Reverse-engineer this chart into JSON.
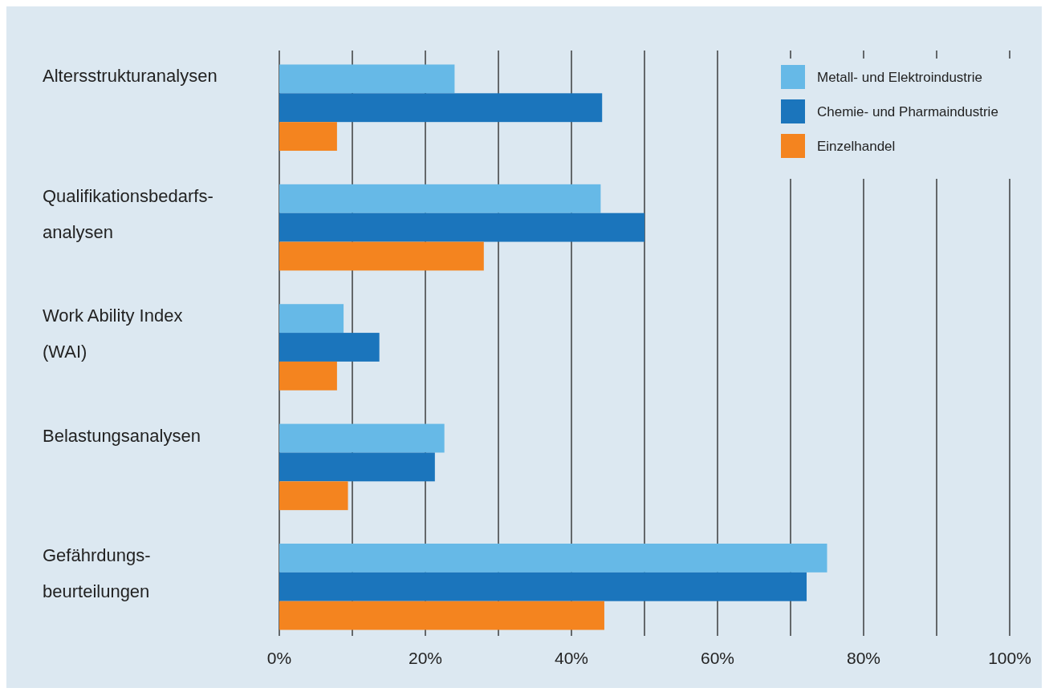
{
  "chart_data": {
    "type": "bar",
    "orientation": "horizontal",
    "categories": [
      "Altersstrukturanalysen",
      "Qualifikationsbedarfs-\nanalysen",
      "Work Ability Index\n(WAI)",
      "Belastungsanalysen",
      "Gefährdungs-\nbeurteilungen"
    ],
    "series": [
      {
        "name": "Metall- und Elektroindustrie",
        "color": "#66b9e7",
        "values": [
          24,
          44,
          8.8,
          22.6,
          75
        ]
      },
      {
        "name": "Chemie- und Pharmaindustrie",
        "color": "#1b75bc",
        "values": [
          44.2,
          50,
          13.7,
          21.3,
          72.2
        ]
      },
      {
        "name": "Einzelhandel",
        "color": "#f4841f",
        "values": [
          7.9,
          28,
          7.9,
          9.4,
          44.5
        ]
      }
    ],
    "xlim": [
      0,
      100
    ],
    "xticks": [
      {
        "value": 0,
        "label": "0%"
      },
      {
        "value": 10,
        "label": null
      },
      {
        "value": 20,
        "label": "20%"
      },
      {
        "value": 30,
        "label": null
      },
      {
        "value": 40,
        "label": "40%"
      },
      {
        "value": 50,
        "label": null
      },
      {
        "value": 60,
        "label": "60%"
      },
      {
        "value": 70,
        "label": null
      },
      {
        "value": 80,
        "label": "80%"
      },
      {
        "value": 90,
        "label": null
      },
      {
        "value": 100,
        "label": "100%"
      }
    ],
    "grid": true,
    "legend": "top right"
  }
}
